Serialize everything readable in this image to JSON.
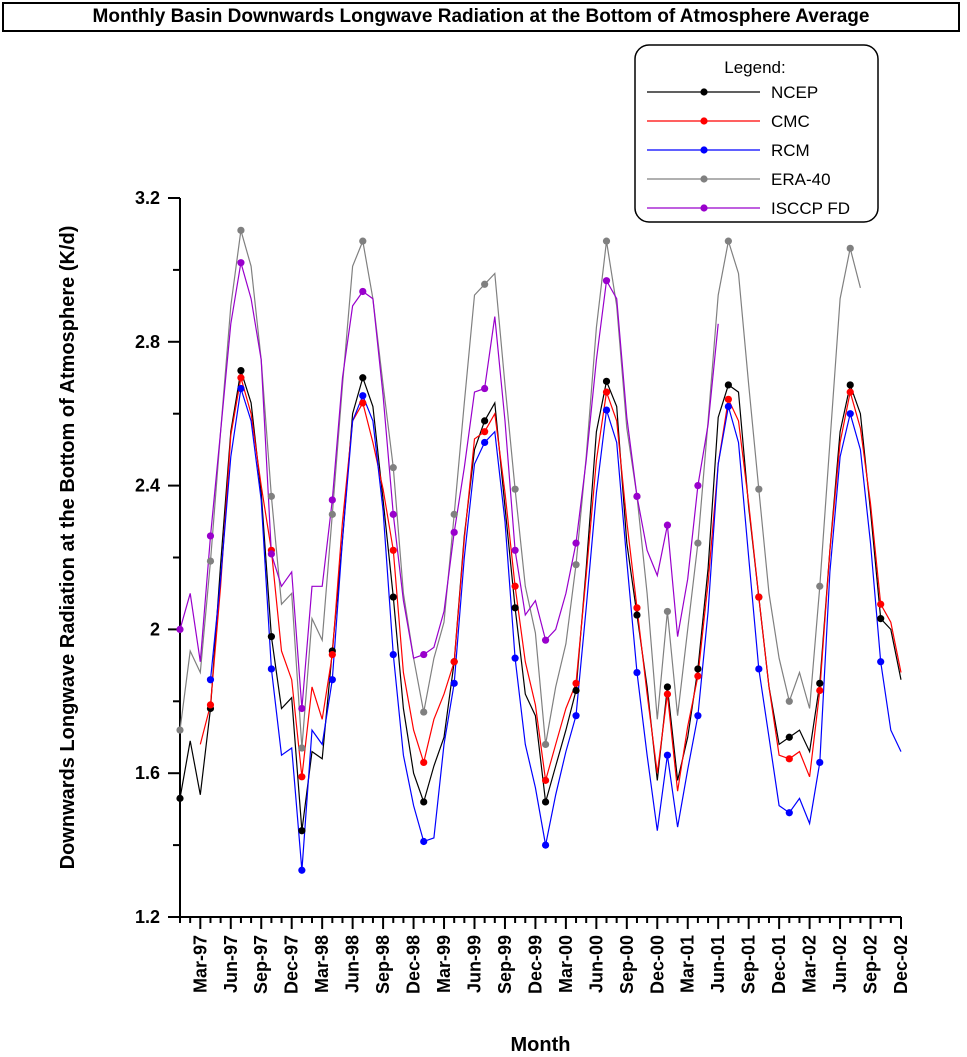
{
  "chart_data": {
    "type": "line",
    "title": "Monthly Basin Downwards Longwave Radiation at the Bottom of Atmosphere Average",
    "xlabel": "Month",
    "ylabel": "Downwards Longwave Radiation at the Bottom of Atmosphere (K/d)",
    "ylim": [
      1.2,
      3.2
    ],
    "yticks": [
      "1.2",
      "1.6",
      "2",
      "2.4",
      "2.8",
      "3.2"
    ],
    "x_tick_labels": [
      "Mar-97",
      "Jun-97",
      "Sep-97",
      "Dec-97",
      "Mar-98",
      "Jun-98",
      "Sep-98",
      "Dec-98",
      "Mar-99",
      "Jun-99",
      "Sep-99",
      "Dec-99",
      "Mar-00",
      "Jun-00",
      "Sep-00",
      "Dec-00",
      "Mar-01",
      "Jun-01",
      "Sep-01",
      "Dec-01",
      "Mar-02",
      "Jun-02",
      "Sep-02",
      "Dec-02"
    ],
    "x_start": "Jan-97",
    "x_end": "Dec-02",
    "legend_title": "Legend:",
    "legend_position": "top-right",
    "series": [
      {
        "name": "NCEP",
        "color": "#000000",
        "values": [
          1.53,
          1.69,
          1.54,
          1.78,
          2.18,
          2.55,
          2.72,
          2.63,
          2.38,
          1.98,
          1.78,
          1.81,
          1.44,
          1.66,
          1.64,
          1.94,
          2.25,
          2.6,
          2.7,
          2.62,
          2.36,
          2.09,
          1.78,
          1.6,
          1.52,
          1.62,
          1.7,
          1.91,
          2.26,
          2.5,
          2.58,
          2.63,
          2.34,
          2.06,
          1.82,
          1.76,
          1.52,
          1.62,
          1.72,
          1.83,
          2.17,
          2.55,
          2.69,
          2.62,
          2.24,
          2.04,
          1.84,
          1.58,
          1.84,
          1.58,
          1.7,
          1.89,
          2.17,
          2.59,
          2.68,
          2.66,
          2.34,
          2.09,
          1.84,
          1.68,
          1.7,
          1.72,
          1.66,
          1.85,
          2.22,
          2.55,
          2.68,
          2.6,
          2.33,
          2.03,
          2.0,
          1.86
        ]
      },
      {
        "name": "CMC",
        "color": "#ff0000",
        "values": [
          null,
          null,
          1.68,
          1.79,
          2.12,
          2.54,
          2.7,
          2.6,
          2.4,
          2.22,
          1.94,
          1.86,
          1.59,
          1.84,
          1.75,
          1.93,
          2.3,
          2.58,
          2.63,
          2.52,
          2.39,
          2.22,
          1.88,
          1.72,
          1.63,
          1.75,
          1.82,
          1.91,
          2.25,
          2.53,
          2.55,
          2.6,
          2.38,
          2.12,
          1.91,
          1.79,
          1.58,
          1.68,
          1.78,
          1.85,
          2.15,
          2.47,
          2.66,
          2.58,
          2.3,
          2.06,
          1.82,
          1.6,
          1.82,
          1.55,
          1.73,
          1.87,
          2.13,
          2.46,
          2.64,
          2.58,
          2.35,
          2.09,
          1.84,
          1.65,
          1.64,
          1.66,
          1.59,
          1.83,
          2.22,
          2.52,
          2.66,
          2.56,
          2.35,
          2.07,
          2.02,
          1.88
        ]
      },
      {
        "name": "RCM",
        "color": "#0000ff",
        "values": [
          null,
          null,
          null,
          1.86,
          2.14,
          2.48,
          2.67,
          2.58,
          2.36,
          1.89,
          1.65,
          1.67,
          1.33,
          1.72,
          1.68,
          1.86,
          2.25,
          2.58,
          2.65,
          2.58,
          2.33,
          1.93,
          1.65,
          1.51,
          1.41,
          1.42,
          1.68,
          1.85,
          2.2,
          2.46,
          2.52,
          2.55,
          2.3,
          1.92,
          1.68,
          1.56,
          1.4,
          1.54,
          1.66,
          1.76,
          2.06,
          2.38,
          2.61,
          2.52,
          2.19,
          1.88,
          1.65,
          1.44,
          1.65,
          1.45,
          1.61,
          1.76,
          2.05,
          2.46,
          2.62,
          2.52,
          2.2,
          1.89,
          1.7,
          1.51,
          1.49,
          1.53,
          1.46,
          1.63,
          2.16,
          2.48,
          2.6,
          2.5,
          2.24,
          1.91,
          1.72,
          1.66
        ]
      },
      {
        "name": "ERA-40",
        "color": "#808080",
        "values": [
          1.72,
          1.94,
          1.88,
          2.19,
          2.55,
          2.9,
          3.11,
          3.01,
          2.75,
          2.37,
          2.07,
          2.1,
          1.67,
          2.03,
          1.97,
          2.32,
          2.68,
          3.01,
          3.08,
          2.92,
          2.68,
          2.45,
          2.1,
          1.92,
          1.77,
          1.92,
          2.02,
          2.32,
          2.63,
          2.93,
          2.96,
          2.99,
          2.68,
          2.39,
          2.12,
          1.99,
          1.68,
          1.84,
          1.96,
          2.18,
          2.48,
          2.84,
          3.08,
          2.9,
          2.56,
          2.37,
          2.1,
          1.75,
          2.05,
          1.76,
          2.0,
          2.24,
          2.58,
          2.93,
          3.08,
          2.99,
          2.68,
          2.39,
          2.1,
          1.92,
          1.8,
          1.88,
          1.78,
          2.12,
          2.52,
          2.92,
          3.06,
          2.95,
          null,
          null,
          null,
          null
        ]
      },
      {
        "name": "ISCCP FD",
        "color": "#9900cc",
        "values": [
          2.0,
          2.1,
          1.91,
          2.26,
          2.55,
          2.85,
          3.02,
          2.92,
          2.75,
          2.21,
          2.12,
          2.16,
          1.78,
          2.12,
          2.12,
          2.36,
          2.7,
          2.9,
          2.94,
          2.92,
          2.65,
          2.32,
          2.08,
          1.92,
          1.93,
          1.95,
          2.05,
          2.27,
          2.45,
          2.66,
          2.67,
          2.87,
          2.58,
          2.22,
          2.04,
          2.08,
          1.97,
          2.0,
          2.1,
          2.24,
          2.47,
          2.75,
          2.97,
          2.92,
          2.59,
          2.37,
          2.22,
          2.15,
          2.29,
          1.98,
          2.14,
          2.4,
          2.57,
          2.85,
          null,
          null,
          null,
          null,
          null,
          null,
          null,
          null,
          null,
          null,
          null,
          null,
          null,
          null,
          null,
          null,
          null,
          null
        ]
      }
    ]
  }
}
